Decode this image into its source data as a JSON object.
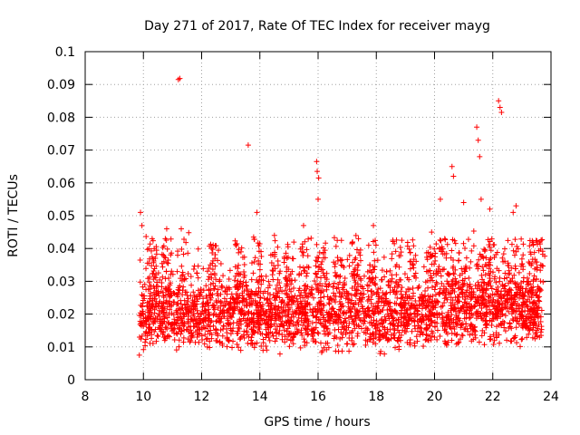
{
  "chart_data": {
    "type": "scatter",
    "title": "Day 271 of 2017, Rate Of TEC Index for receiver mayg",
    "xlabel": "GPS time / hours",
    "ylabel": "ROTI / TECUs",
    "xlim": [
      8,
      24
    ],
    "ylim": [
      0,
      0.1
    ],
    "xticks": [
      "8",
      "10",
      "12",
      "14",
      "16",
      "18",
      "20",
      "22",
      "24"
    ],
    "yticks": [
      "0",
      "0.01",
      "0.02",
      "0.03",
      "0.04",
      "0.05",
      "0.06",
      "0.07",
      "0.08",
      "0.09",
      "0.1"
    ],
    "marker": "+",
    "color": "#ff0000",
    "grid": true,
    "series": [
      {
        "name": "ROTI",
        "highlight_points": [
          {
            "x": 9.9,
            "y": 0.051
          },
          {
            "x": 9.95,
            "y": 0.047
          },
          {
            "x": 10.3,
            "y": 0.043
          },
          {
            "x": 10.8,
            "y": 0.046
          },
          {
            "x": 11.2,
            "y": 0.0915
          },
          {
            "x": 11.25,
            "y": 0.0918
          },
          {
            "x": 11.3,
            "y": 0.046
          },
          {
            "x": 12.3,
            "y": 0.035
          },
          {
            "x": 13.6,
            "y": 0.0715
          },
          {
            "x": 13.9,
            "y": 0.051
          },
          {
            "x": 14.5,
            "y": 0.044
          },
          {
            "x": 15.5,
            "y": 0.047
          },
          {
            "x": 15.95,
            "y": 0.0665
          },
          {
            "x": 15.97,
            "y": 0.0635
          },
          {
            "x": 16.0,
            "y": 0.055
          },
          {
            "x": 16.02,
            "y": 0.0615
          },
          {
            "x": 17.9,
            "y": 0.047
          },
          {
            "x": 19.9,
            "y": 0.045
          },
          {
            "x": 20.2,
            "y": 0.055
          },
          {
            "x": 20.6,
            "y": 0.065
          },
          {
            "x": 20.65,
            "y": 0.062
          },
          {
            "x": 21.0,
            "y": 0.054
          },
          {
            "x": 21.45,
            "y": 0.077
          },
          {
            "x": 21.5,
            "y": 0.073
          },
          {
            "x": 21.55,
            "y": 0.068
          },
          {
            "x": 21.6,
            "y": 0.055
          },
          {
            "x": 21.9,
            "y": 0.052
          },
          {
            "x": 22.2,
            "y": 0.085
          },
          {
            "x": 22.25,
            "y": 0.083
          },
          {
            "x": 22.3,
            "y": 0.0815
          },
          {
            "x": 22.7,
            "y": 0.051
          },
          {
            "x": 22.8,
            "y": 0.053
          },
          {
            "x": 23.6,
            "y": 0.042
          }
        ]
      }
    ]
  }
}
